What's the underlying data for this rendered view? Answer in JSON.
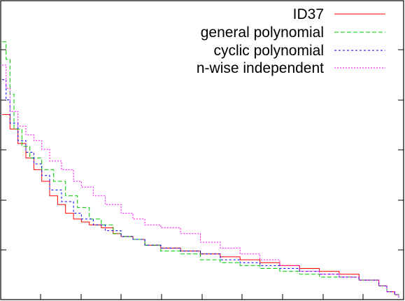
{
  "chart_data": {
    "type": "line",
    "title": "",
    "xlabel": "",
    "ylabel": "",
    "xlim": [
      0,
      100
    ],
    "ylim": [
      0,
      100
    ],
    "grid": false,
    "legend_position": "top-right",
    "series": [
      {
        "name": "ID37",
        "color": "#ff0000",
        "dash": "solid",
        "points": [
          [
            0,
            63
          ],
          [
            2,
            58
          ],
          [
            4,
            53
          ],
          [
            6,
            48
          ],
          [
            8,
            44
          ],
          [
            10,
            40
          ],
          [
            12,
            35
          ],
          [
            14,
            32
          ],
          [
            16,
            29
          ],
          [
            18,
            27
          ],
          [
            20,
            26
          ],
          [
            22,
            25
          ],
          [
            25,
            24
          ],
          [
            28,
            22
          ],
          [
            30,
            21
          ],
          [
            33,
            20
          ],
          [
            36,
            18
          ],
          [
            40,
            17
          ],
          [
            45,
            16
          ],
          [
            50,
            15
          ],
          [
            55,
            14
          ],
          [
            60,
            13
          ],
          [
            65,
            12
          ],
          [
            70,
            11
          ],
          [
            75,
            10
          ],
          [
            80,
            9
          ],
          [
            85,
            8
          ],
          [
            90,
            6
          ],
          [
            95,
            4
          ],
          [
            97,
            2
          ],
          [
            99,
            1
          ],
          [
            100,
            0
          ]
        ]
      },
      {
        "name": "general polynomial",
        "color": "#00cc00",
        "dash": "dashed",
        "points": [
          [
            0,
            88
          ],
          [
            1,
            82
          ],
          [
            2,
            70
          ],
          [
            3,
            58
          ],
          [
            5,
            52
          ],
          [
            7,
            48
          ],
          [
            10,
            44
          ],
          [
            13,
            40
          ],
          [
            16,
            35
          ],
          [
            19,
            31
          ],
          [
            22,
            27
          ],
          [
            25,
            25
          ],
          [
            28,
            22
          ],
          [
            30,
            21
          ],
          [
            33,
            20
          ],
          [
            36,
            18
          ],
          [
            40,
            16
          ],
          [
            45,
            15
          ],
          [
            50,
            13
          ],
          [
            55,
            12
          ],
          [
            60,
            11
          ],
          [
            65,
            10
          ],
          [
            70,
            9
          ],
          [
            75,
            8
          ],
          [
            80,
            7
          ],
          [
            85,
            7
          ],
          [
            90,
            6
          ],
          [
            95,
            4
          ],
          [
            97,
            2
          ],
          [
            99,
            1
          ],
          [
            100,
            0
          ]
        ]
      },
      {
        "name": "cyclic polynomial",
        "color": "#0000ff",
        "dash": "dotted-dense",
        "points": [
          [
            0,
            75
          ],
          [
            1,
            68
          ],
          [
            2,
            60
          ],
          [
            4,
            54
          ],
          [
            6,
            50
          ],
          [
            8,
            46
          ],
          [
            10,
            42
          ],
          [
            12,
            37
          ],
          [
            15,
            33
          ],
          [
            18,
            29
          ],
          [
            20,
            27
          ],
          [
            23,
            25
          ],
          [
            26,
            23
          ],
          [
            30,
            21
          ],
          [
            33,
            20
          ],
          [
            36,
            18
          ],
          [
            40,
            17
          ],
          [
            45,
            16
          ],
          [
            50,
            15
          ],
          [
            55,
            13
          ],
          [
            60,
            12
          ],
          [
            65,
            11
          ],
          [
            70,
            10
          ],
          [
            75,
            9
          ],
          [
            80,
            8
          ],
          [
            85,
            7
          ],
          [
            90,
            6
          ],
          [
            95,
            4
          ],
          [
            97,
            2
          ],
          [
            99,
            1
          ],
          [
            100,
            0
          ]
        ]
      },
      {
        "name": "n-wise independent",
        "color": "#ff00ff",
        "dash": "dotted",
        "points": [
          [
            0,
            80
          ],
          [
            1,
            72
          ],
          [
            2,
            64
          ],
          [
            4,
            59
          ],
          [
            6,
            56
          ],
          [
            8,
            54
          ],
          [
            10,
            51
          ],
          [
            12,
            47
          ],
          [
            15,
            44
          ],
          [
            18,
            40
          ],
          [
            20,
            38
          ],
          [
            23,
            35
          ],
          [
            26,
            32
          ],
          [
            30,
            29
          ],
          [
            33,
            27
          ],
          [
            36,
            25
          ],
          [
            40,
            24
          ],
          [
            45,
            22
          ],
          [
            50,
            19
          ],
          [
            55,
            17
          ],
          [
            60,
            15
          ],
          [
            65,
            13
          ],
          [
            70,
            11
          ],
          [
            75,
            9
          ],
          [
            80,
            8
          ],
          [
            85,
            7
          ],
          [
            90,
            6
          ],
          [
            95,
            4
          ],
          [
            97,
            2
          ],
          [
            99,
            1
          ],
          [
            100,
            0
          ]
        ]
      }
    ]
  }
}
